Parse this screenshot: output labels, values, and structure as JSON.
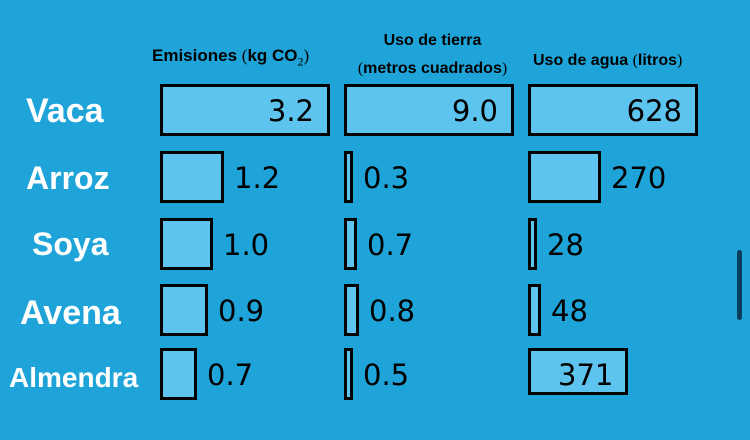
{
  "headers": {
    "emissions": {
      "main": "Emisiones ",
      "paren_open": "(",
      "unit": "kg CO",
      "sub": "2",
      "paren_close": ")"
    },
    "land": {
      "line1": "Uso de tierra",
      "paren_open": "(",
      "line2": "metros cuadrados",
      "paren_close": ")"
    },
    "water": {
      "main": "Uso de agua ",
      "paren_open": "(",
      "unit": "litros",
      "paren_close": ")"
    }
  },
  "rows": [
    "Vaca",
    "Arroz",
    "Soya",
    "Avena",
    "Almendra"
  ],
  "colors": {
    "background": "#1ea4d9",
    "bar_fill": "#5cc4ee",
    "bar_border": "#000000",
    "label_text": "#ffffff"
  },
  "chart_data": {
    "type": "bar",
    "orientation": "horizontal",
    "categories": [
      "Vaca",
      "Arroz",
      "Soya",
      "Avena",
      "Almendra"
    ],
    "series": [
      {
        "name": "Emisiones (kg CO2)",
        "values": [
          3.2,
          1.2,
          1.0,
          0.9,
          0.7
        ],
        "labels": [
          "3.2",
          "1.2",
          "1.0",
          "0.9",
          "0.7"
        ]
      },
      {
        "name": "Uso de tierra (metros cuadrados)",
        "values": [
          9.0,
          0.3,
          0.7,
          0.8,
          0.5
        ],
        "labels": [
          "9.0",
          "0.3",
          "0.7",
          "0.8",
          "0.5"
        ]
      },
      {
        "name": "Uso de agua (litros)",
        "values": [
          628,
          270,
          28,
          48,
          371
        ],
        "labels": [
          "628",
          "270",
          "28",
          "48",
          "371"
        ]
      }
    ],
    "legend": "none",
    "grid": false
  }
}
